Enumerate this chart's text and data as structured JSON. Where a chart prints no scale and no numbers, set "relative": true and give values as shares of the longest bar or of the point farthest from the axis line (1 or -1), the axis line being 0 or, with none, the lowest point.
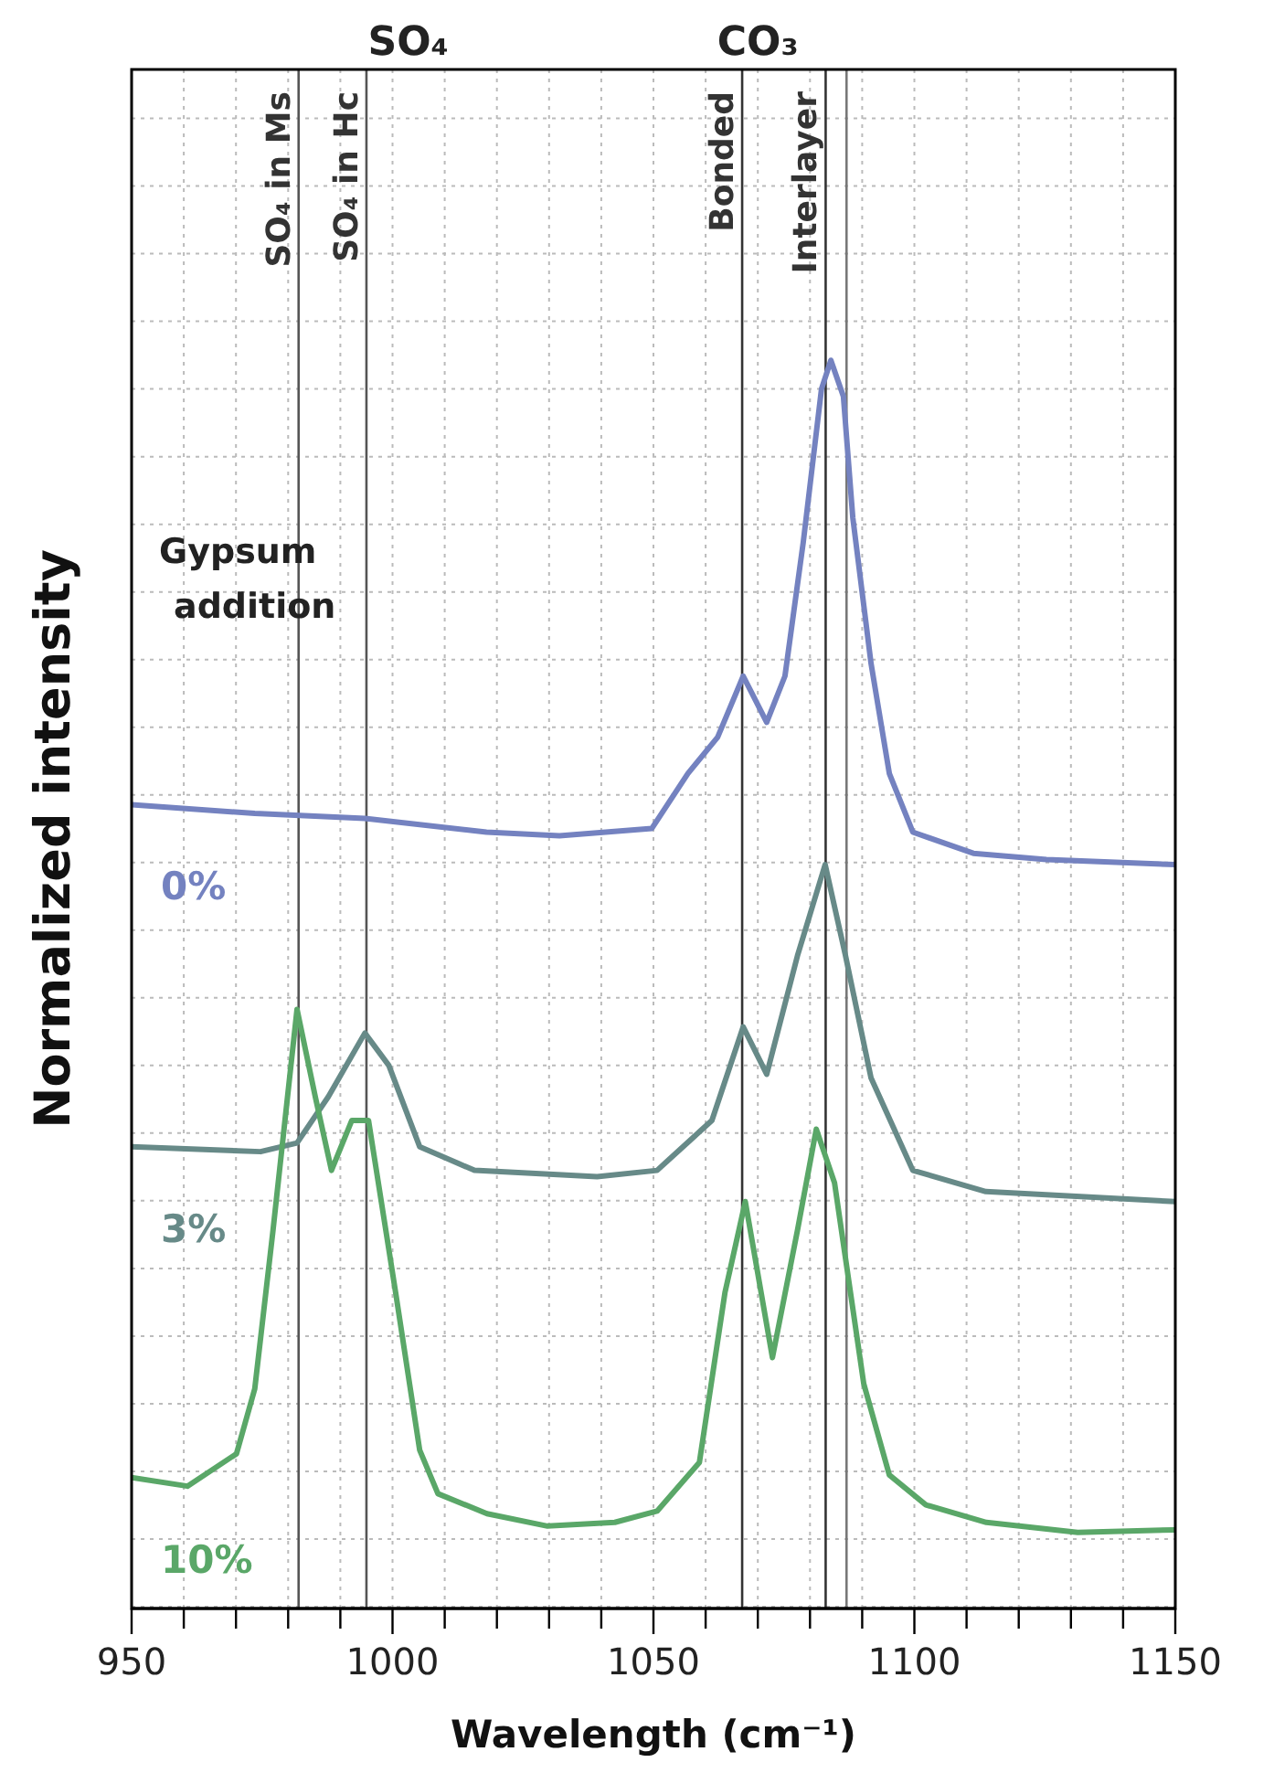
{
  "chart_data": {
    "type": "line",
    "relative": true,
    "xlabel": "Wavelength (cm⁻¹)",
    "ylabel": "Normalized intensity",
    "xlim": [
      950,
      1150
    ],
    "xticks": [
      950,
      {
        "value": 960,
        "label": null
      },
      {
        "value": 970,
        "label": null
      },
      {
        "value": 980,
        "label": null
      },
      {
        "value": 990,
        "label": null
      },
      1000,
      {
        "value": 1010,
        "label": null
      },
      {
        "value": 1020,
        "label": null
      },
      {
        "value": 1030,
        "label": null
      },
      {
        "value": 1040,
        "label": null
      },
      1050,
      {
        "value": 1060,
        "label": null
      },
      {
        "value": 1070,
        "label": null
      },
      {
        "value": 1080,
        "label": null
      },
      {
        "value": 1090,
        "label": null
      },
      1100,
      {
        "value": 1110,
        "label": null
      },
      {
        "value": 1120,
        "label": null
      },
      {
        "value": 1130,
        "label": null
      },
      {
        "value": 1140,
        "label": null
      },
      1150
    ],
    "grid": true,
    "legend": false,
    "marker": "none",
    "line_style": "solid",
    "annotations": [
      "SO₄",
      "CO₃",
      "Gypsum addition"
    ],
    "ref_lines": [
      {
        "axis": "x",
        "value": 982,
        "label": "SO₄ in Ms",
        "color": "#555555"
      },
      {
        "axis": "x",
        "value": 995,
        "label": "SO₄ in Hc",
        "color": "#555555"
      },
      {
        "axis": "x",
        "value": 1067,
        "label": "Bonded",
        "color": "#333333"
      },
      {
        "axis": "x",
        "value": 1083,
        "label": "Interlayer",
        "color": "#333333"
      },
      {
        "axis": "x",
        "value": 1087,
        "label": null,
        "color": "#777777"
      }
    ],
    "series": [
      {
        "name": "0%",
        "color": "#7482c0",
        "x": [
          950,
          973.6,
          994.7,
          1018,
          1032,
          1049.7,
          1056.6,
          1062.3,
          1067.2,
          1071.7,
          1075.2,
          1078.7,
          1082.2,
          1084,
          1086.4,
          1088.2,
          1091.7,
          1095.2,
          1099.7,
          1111.3,
          1125.3,
          1150
        ],
        "values": [
          0.644,
          0.637,
          0.633,
          0.622,
          0.619,
          0.625,
          0.669,
          0.698,
          0.747,
          0.71,
          0.747,
          0.854,
          0.977,
          1,
          0.971,
          0.874,
          0.757,
          0.669,
          0.622,
          0.605,
          0.6,
          0.596
        ]
      },
      {
        "name": "3%",
        "color": "#678a88",
        "x": [
          950,
          974.7,
          981.7,
          987.7,
          994.7,
          999.3,
          1005.2,
          1015.7,
          1039.2,
          1050.7,
          1061.2,
          1067.2,
          1071.7,
          1077.6,
          1082.9,
          1086.8,
          1091.7,
          1099.7,
          1113.7,
          1150
        ],
        "values": [
          0.37,
          0.366,
          0.373,
          0.41,
          0.461,
          0.435,
          0.37,
          0.351,
          0.346,
          0.351,
          0.391,
          0.466,
          0.428,
          0.523,
          0.596,
          0.523,
          0.425,
          0.351,
          0.334,
          0.326
        ]
      },
      {
        "name": "10%",
        "color": "#5aa768",
        "x": [
          950,
          960.7,
          970.1,
          973.6,
          977.1,
          981.7,
          985.2,
          988.3,
          992.2,
          995.4,
          1000.6,
          1005.2,
          1008.7,
          1018.1,
          1029.7,
          1042.6,
          1050.7,
          1058.8,
          1063.7,
          1067.6,
          1072.8,
          1077.6,
          1081.2,
          1084.7,
          1090.3,
          1095.2,
          1102.2,
          1113.8,
          1131.3,
          1150
        ],
        "values": [
          0.105,
          0.098,
          0.124,
          0.176,
          0.303,
          0.48,
          0.41,
          0.351,
          0.391,
          0.391,
          0.253,
          0.127,
          0.092,
          0.076,
          0.066,
          0.069,
          0.078,
          0.117,
          0.253,
          0.326,
          0.201,
          0.303,
          0.384,
          0.341,
          0.18,
          0.107,
          0.083,
          0.069,
          0.061,
          0.063
        ]
      }
    ]
  }
}
